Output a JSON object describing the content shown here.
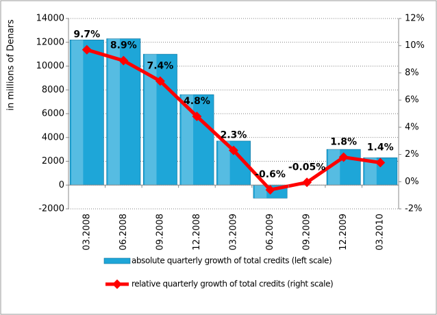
{
  "chart_data": {
    "type": "bar-line",
    "y_label": "in millions of Denars",
    "categories": [
      "03.2008",
      "06.2008",
      "09.2008",
      "12.2008",
      "03.2009",
      "06.2009",
      "09.2009",
      "12.2009",
      "03.2010"
    ],
    "series": [
      {
        "name": "absolute quarterly growth of total credits (left scale)",
        "type": "bar",
        "color": "#1ea6d8",
        "values": [
          12200,
          12300,
          11000,
          7600,
          3700,
          -1100,
          0,
          3000,
          2300
        ]
      },
      {
        "name": "relative quarterly growth of total credits (right scale)",
        "type": "line",
        "axis": "y2",
        "color": "#ff0000",
        "values": [
          9.7,
          8.9,
          7.4,
          4.8,
          2.3,
          -0.6,
          -0.05,
          1.8,
          1.4
        ],
        "value_labels": [
          "9.7%",
          "8.9%",
          "7.4%",
          "4.8%",
          "2.3%",
          "-0.6%",
          "-0.05%",
          "1.8%",
          "1.4%"
        ]
      }
    ],
    "ylim": [
      -2000,
      14000
    ],
    "yticks": [
      -2000,
      0,
      2000,
      4000,
      6000,
      8000,
      10000,
      12000,
      14000
    ],
    "y2lim": [
      -2,
      12
    ],
    "y2ticks": [
      {
        "value": -2,
        "label": "-2%"
      },
      {
        "value": 0,
        "label": "0%"
      },
      {
        "value": 2,
        "label": "2%"
      },
      {
        "value": 4,
        "label": "4%"
      },
      {
        "value": 6,
        "label": "6%"
      },
      {
        "value": 8,
        "label": "8%"
      },
      {
        "value": 10,
        "label": "10%"
      },
      {
        "value": 12,
        "label": "12%"
      }
    ],
    "grid": true
  }
}
